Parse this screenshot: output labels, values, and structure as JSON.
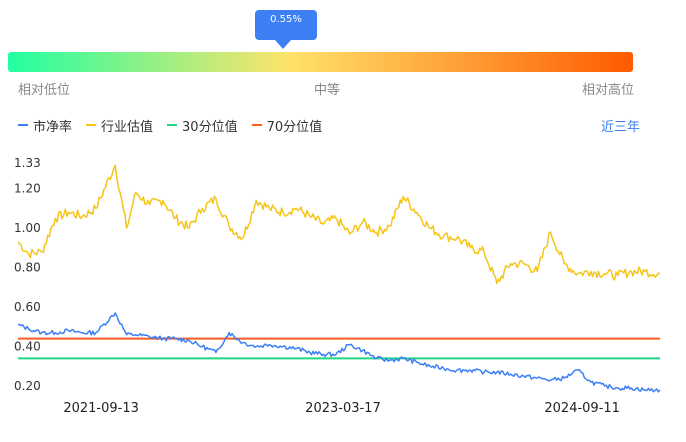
{
  "gauge": {
    "marker_label": "0.55%",
    "percentile": 0.0055,
    "left_label": "相对低位",
    "mid_label": "中等",
    "right_label": "相对高位",
    "colors": [
      "#22ffa2",
      "#ffe36b",
      "#ff5a00"
    ]
  },
  "legend": {
    "items": [
      {
        "label": "市净率",
        "color": "#3d7ff5"
      },
      {
        "label": "行业估值",
        "color": "#f5c518"
      },
      {
        "label": "30分位值",
        "color": "#1fd682"
      },
      {
        "label": "70分位值",
        "color": "#ff5a1f"
      }
    ]
  },
  "period_label": "近三年",
  "chart_data": {
    "type": "line",
    "y_ticks": [
      "1.33",
      "1.20",
      "1.00",
      "0.80",
      "0.60",
      "0.40",
      "0.20"
    ],
    "y_tick_values": [
      1.33,
      1.2,
      1.0,
      0.8,
      0.6,
      0.4,
      0.2
    ],
    "ylim": [
      0.2,
      1.33
    ],
    "x_ticks": [
      "2021-09-13",
      "2023-03-17",
      "2024-09-11"
    ],
    "x_tick_dates": [
      "2021-09-13",
      "2023-03-17",
      "2024-09-11"
    ],
    "x_range": [
      "2021-03-08",
      "2025-03-07"
    ],
    "series": [
      {
        "name": "行业估值",
        "color": "#f5c518",
        "dates": [
          "2021-03-08",
          "2021-04-01",
          "2021-05-01",
          "2021-06-01",
          "2021-07-01",
          "2021-08-01",
          "2021-09-01",
          "2021-10-15",
          "2021-11-10",
          "2021-12-01",
          "2022-01-01",
          "2022-02-01",
          "2022-03-01",
          "2022-04-01",
          "2022-05-01",
          "2022-06-01",
          "2022-07-01",
          "2022-08-01",
          "2022-09-01",
          "2022-10-01",
          "2022-11-01",
          "2022-12-01",
          "2023-01-01",
          "2023-02-01",
          "2023-03-01",
          "2023-04-01",
          "2023-05-01",
          "2023-06-01",
          "2023-07-01",
          "2023-08-01",
          "2023-09-01",
          "2023-10-01",
          "2023-11-01",
          "2023-12-01",
          "2024-01-01",
          "2024-02-01",
          "2024-03-01",
          "2024-04-01",
          "2024-05-01",
          "2024-06-01",
          "2024-07-01",
          "2024-08-01",
          "2024-09-01",
          "2024-10-01",
          "2024-11-01",
          "2024-12-01",
          "2025-01-01",
          "2025-02-01",
          "2025-03-07"
        ],
        "values": [
          0.93,
          0.87,
          0.88,
          1.05,
          1.08,
          1.06,
          1.1,
          1.32,
          1.0,
          1.18,
          1.12,
          1.14,
          1.05,
          1.0,
          1.1,
          1.15,
          1.01,
          0.95,
          1.14,
          1.1,
          1.08,
          1.1,
          1.06,
          1.02,
          1.05,
          0.97,
          1.03,
          0.98,
          1.01,
          1.16,
          1.08,
          1.0,
          0.96,
          0.95,
          0.9,
          0.88,
          0.72,
          0.82,
          0.82,
          0.78,
          0.98,
          0.82,
          0.77,
          0.78,
          0.77,
          0.76,
          0.78,
          0.78,
          0.77
        ]
      },
      {
        "name": "市净率",
        "color": "#3d7ff5",
        "dates": [
          "2021-03-08",
          "2021-04-01",
          "2021-05-01",
          "2021-06-01",
          "2021-07-01",
          "2021-08-01",
          "2021-09-01",
          "2021-10-15",
          "2021-11-10",
          "2021-12-01",
          "2022-01-01",
          "2022-02-01",
          "2022-03-01",
          "2022-04-01",
          "2022-05-01",
          "2022-06-01",
          "2022-07-01",
          "2022-08-01",
          "2022-09-01",
          "2022-10-01",
          "2022-11-01",
          "2022-12-01",
          "2023-01-01",
          "2023-02-01",
          "2023-03-01",
          "2023-04-01",
          "2023-05-01",
          "2023-06-01",
          "2023-07-01",
          "2023-08-01",
          "2023-09-01",
          "2023-10-01",
          "2023-11-01",
          "2023-12-01",
          "2024-01-01",
          "2024-02-01",
          "2024-03-01",
          "2024-04-01",
          "2024-05-01",
          "2024-06-01",
          "2024-07-01",
          "2024-08-01",
          "2024-09-01",
          "2024-10-01",
          "2024-11-01",
          "2024-12-01",
          "2025-01-01",
          "2025-02-01",
          "2025-03-07"
        ],
        "values": [
          0.51,
          0.49,
          0.47,
          0.47,
          0.48,
          0.47,
          0.47,
          0.57,
          0.46,
          0.46,
          0.45,
          0.44,
          0.44,
          0.43,
          0.4,
          0.37,
          0.47,
          0.42,
          0.4,
          0.41,
          0.4,
          0.39,
          0.37,
          0.36,
          0.36,
          0.41,
          0.38,
          0.34,
          0.33,
          0.34,
          0.32,
          0.3,
          0.29,
          0.28,
          0.28,
          0.27,
          0.27,
          0.26,
          0.25,
          0.24,
          0.23,
          0.24,
          0.28,
          0.22,
          0.2,
          0.19,
          0.19,
          0.18,
          0.18
        ]
      },
      {
        "name": "30分位值",
        "color": "#1fd682",
        "dates": [
          "2021-03-08",
          "2025-03-07"
        ],
        "values": [
          0.34,
          0.34
        ]
      },
      {
        "name": "70分位值",
        "color": "#ff5a1f",
        "dates": [
          "2021-03-08",
          "2025-03-07"
        ],
        "values": [
          0.44,
          0.44
        ]
      }
    ]
  }
}
